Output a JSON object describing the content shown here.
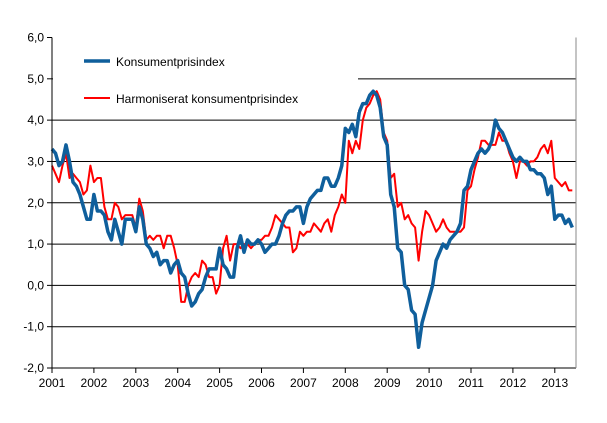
{
  "chart_data": {
    "type": "line",
    "title": "",
    "xlabel": "",
    "ylabel": "",
    "ylim": [
      -2.0,
      6.0
    ],
    "yticks": [
      "-2,0",
      "-1,0",
      "0,0",
      "1,0",
      "2,0",
      "3,0",
      "4,0",
      "5,0",
      "6,0"
    ],
    "xticks": [
      "2001",
      "2002",
      "2003",
      "2004",
      "2005",
      "2006",
      "2007",
      "2008",
      "2009",
      "2010",
      "2011",
      "2012",
      "2013"
    ],
    "x_start": "2001-01",
    "frequency": "monthly",
    "grid": true,
    "legend_position": "top-left",
    "series": [
      {
        "name": "Konsumentprisindex",
        "color": "#0f5f9c",
        "values": [
          3.3,
          3.2,
          2.9,
          3.0,
          3.4,
          3.0,
          2.5,
          2.4,
          2.2,
          1.9,
          1.6,
          1.6,
          2.2,
          1.8,
          1.8,
          1.7,
          1.3,
          1.1,
          1.6,
          1.3,
          1.0,
          1.6,
          1.6,
          1.6,
          1.3,
          1.9,
          1.6,
          1.0,
          0.9,
          0.7,
          0.8,
          0.5,
          0.6,
          0.6,
          0.3,
          0.5,
          0.6,
          0.3,
          0.2,
          -0.2,
          -0.5,
          -0.4,
          -0.2,
          -0.1,
          0.2,
          0.4,
          0.4,
          0.4,
          0.9,
          0.5,
          0.4,
          0.2,
          0.2,
          0.9,
          1.2,
          0.8,
          1.1,
          1.0,
          1.0,
          1.1,
          1.0,
          0.8,
          0.9,
          1.0,
          1.0,
          1.2,
          1.5,
          1.7,
          1.8,
          1.8,
          1.9,
          1.9,
          1.5,
          1.9,
          2.1,
          2.2,
          2.3,
          2.3,
          2.6,
          2.6,
          2.4,
          2.4,
          2.6,
          2.9,
          3.8,
          3.7,
          3.9,
          3.6,
          4.2,
          4.4,
          4.4,
          4.6,
          4.7,
          4.6,
          4.3,
          3.6,
          3.4,
          2.2,
          1.9,
          0.9,
          0.8,
          0.0,
          -0.1,
          -0.6,
          -0.7,
          -1.5,
          -0.9,
          -0.6,
          -0.3,
          0.0,
          0.6,
          0.8,
          1.0,
          0.9,
          1.1,
          1.2,
          1.3,
          1.5,
          2.3,
          2.4,
          2.8,
          3.0,
          3.2,
          3.3,
          3.2,
          3.3,
          3.5,
          4.0,
          3.8,
          3.7,
          3.5,
          3.3,
          3.1,
          3.0,
          3.1,
          3.0,
          3.0,
          2.8,
          2.8,
          2.7,
          2.7,
          2.6,
          2.2,
          2.4,
          1.6,
          1.7,
          1.7,
          1.5,
          1.6,
          1.4
        ]
      },
      {
        "name": "Harmoniserat konsumentprisindex",
        "color": "#ff0000",
        "values": [
          2.9,
          2.7,
          2.5,
          2.9,
          3.2,
          2.6,
          2.7,
          2.6,
          2.5,
          2.2,
          2.3,
          2.9,
          2.5,
          2.6,
          2.6,
          1.9,
          1.6,
          1.6,
          2.0,
          1.9,
          1.6,
          1.7,
          1.7,
          1.7,
          1.4,
          2.1,
          1.8,
          1.1,
          1.2,
          1.1,
          1.2,
          1.2,
          0.9,
          1.2,
          1.2,
          0.9,
          0.5,
          -0.4,
          -0.4,
          0.0,
          0.2,
          0.3,
          0.2,
          0.6,
          0.5,
          0.2,
          0.2,
          -0.2,
          0.0,
          0.9,
          1.2,
          0.6,
          1.0,
          1.0,
          0.9,
          1.0,
          1.0,
          0.9,
          1.0,
          1.1,
          1.1,
          1.2,
          1.2,
          1.4,
          1.7,
          1.6,
          1.5,
          1.4,
          1.4,
          0.8,
          0.9,
          1.3,
          1.2,
          1.3,
          1.3,
          1.5,
          1.4,
          1.3,
          1.5,
          1.6,
          1.3,
          1.7,
          1.9,
          2.2,
          2.0,
          3.5,
          3.2,
          3.5,
          3.3,
          4.0,
          4.3,
          4.4,
          4.6,
          4.7,
          4.5,
          3.7,
          3.5,
          2.6,
          2.7,
          1.9,
          2.0,
          1.6,
          1.7,
          1.5,
          1.4,
          0.6,
          1.3,
          1.8,
          1.7,
          1.5,
          1.3,
          1.4,
          1.6,
          1.4,
          1.3,
          1.3,
          1.3,
          1.3,
          1.4,
          2.3,
          2.4,
          2.8,
          3.1,
          3.5,
          3.5,
          3.4,
          3.4,
          3.4,
          3.7,
          3.5,
          3.5,
          3.2,
          3.0,
          2.6,
          3.0,
          3.0,
          2.9,
          3.0,
          3.0,
          3.1,
          3.3,
          3.4,
          3.2,
          3.5,
          2.6,
          2.5,
          2.4,
          2.5,
          2.3,
          2.3
        ]
      }
    ]
  }
}
